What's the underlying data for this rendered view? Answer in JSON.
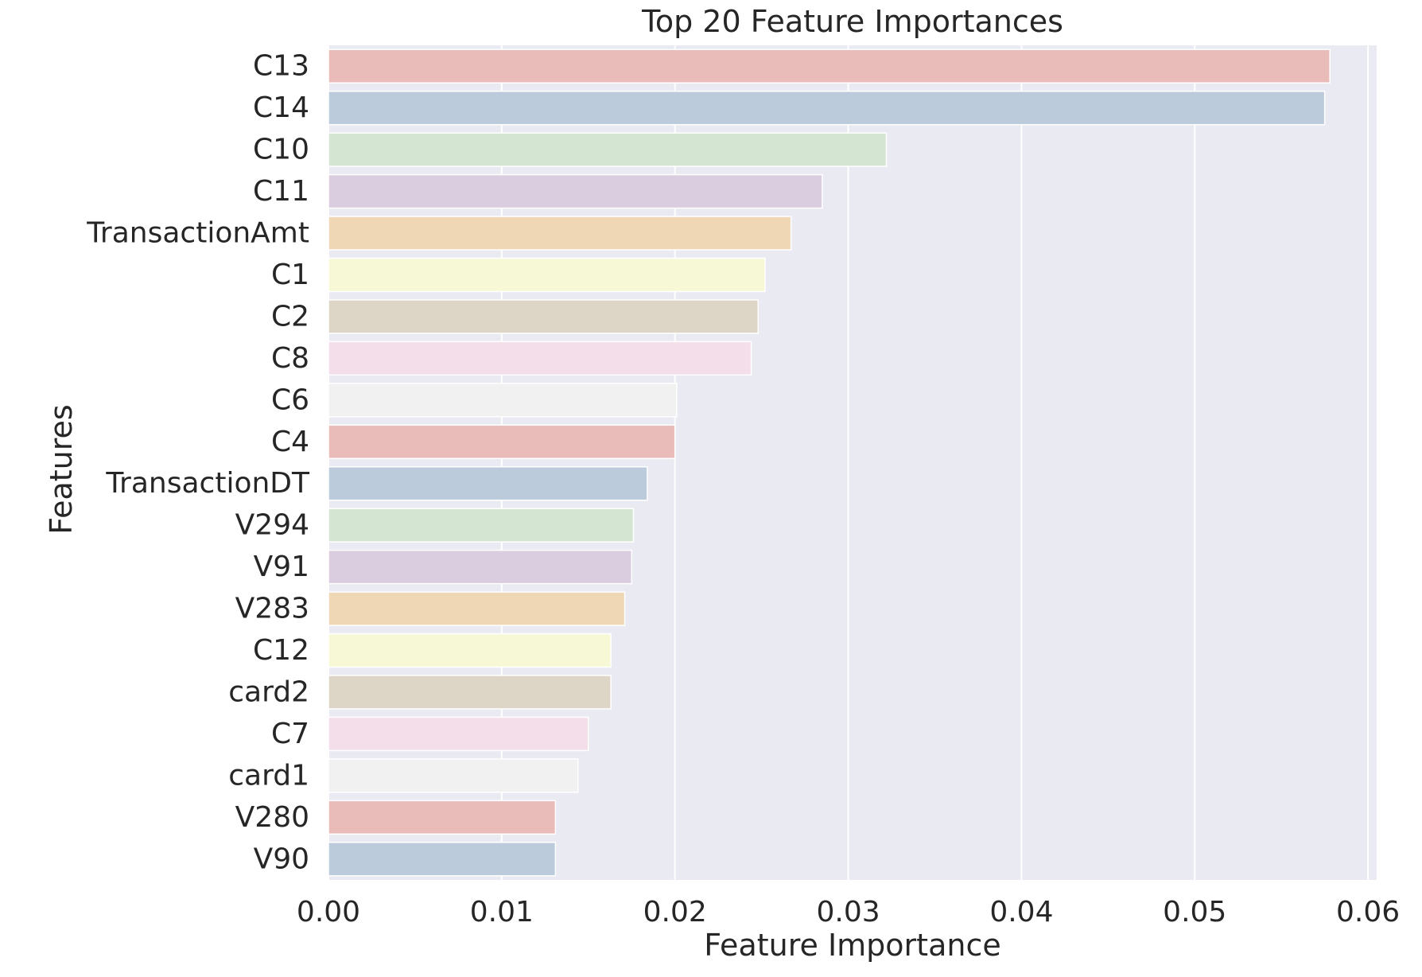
{
  "chart_data": {
    "type": "bar",
    "orientation": "horizontal",
    "title": "Top 20 Feature Importances",
    "xlabel": "Feature Importance",
    "ylabel": "Features",
    "xlim": [
      0,
      0.0605
    ],
    "xticks": [
      0.0,
      0.01,
      0.02,
      0.03,
      0.04,
      0.05,
      0.06
    ],
    "xtick_labels": [
      "0.00",
      "0.01",
      "0.02",
      "0.03",
      "0.04",
      "0.05",
      "0.06"
    ],
    "grid": true,
    "categories": [
      "C13",
      "C14",
      "C10",
      "C11",
      "TransactionAmt",
      "C1",
      "C2",
      "C8",
      "C6",
      "C4",
      "TransactionDT",
      "V294",
      "V91",
      "V283",
      "C12",
      "card2",
      "C7",
      "card1",
      "V280",
      "V90"
    ],
    "values": [
      0.0578,
      0.0575,
      0.0322,
      0.0285,
      0.0267,
      0.0252,
      0.0248,
      0.0244,
      0.0201,
      0.02,
      0.0184,
      0.0176,
      0.0175,
      0.0171,
      0.0163,
      0.0163,
      0.015,
      0.0144,
      0.0131,
      0.0131
    ],
    "palette": [
      "#e9bbb9",
      "#bbcbdc",
      "#d4e6d2",
      "#dacde0",
      "#efd7b6",
      "#f7f8d5",
      "#ddd6c6",
      "#f3deea",
      "#f1f1f1"
    ]
  }
}
